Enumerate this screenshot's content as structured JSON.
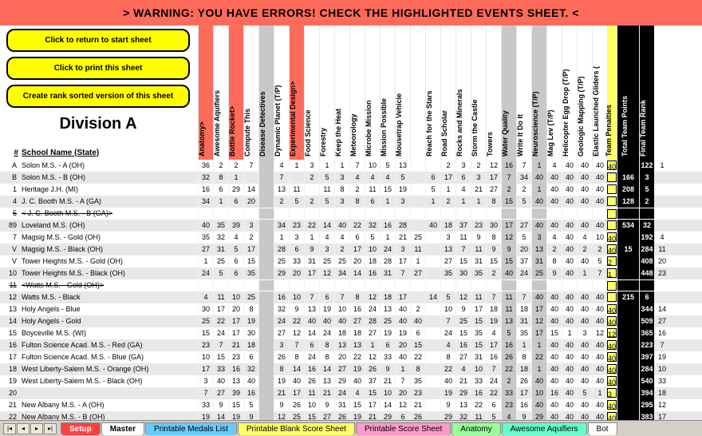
{
  "warning": "> WARNING: YOU HAVE ERRORS! CHECK THE HIGHLIGHTED EVENTS SHEET. <",
  "buttons": {
    "return": "Click to return to start sheet",
    "print": "Click to print this sheet",
    "rank": "Create rank sorted version of this sheet"
  },
  "division": "Division A",
  "hdr_num": "#",
  "hdr_school": "School Name (State)",
  "events": [
    {
      "label": "Anatomy>",
      "class": "red"
    },
    {
      "label": "Awesome Aquifiers",
      "class": ""
    },
    {
      "label": "Bottle Rocket>",
      "class": "red"
    },
    {
      "label": "Compute This",
      "class": ""
    },
    {
      "label": "Disease Detectives",
      "class": "gray"
    },
    {
      "label": "Dynamic Planet (T/P)",
      "class": ""
    },
    {
      "label": "Experimental Design>",
      "class": "red"
    },
    {
      "label": "Food Science",
      "class": ""
    },
    {
      "label": "Forestry",
      "class": ""
    },
    {
      "label": "Keep the Heat",
      "class": ""
    },
    {
      "label": "Meteorology",
      "class": ""
    },
    {
      "label": "Microbe Mission",
      "class": ""
    },
    {
      "label": "Mission Possible",
      "class": ""
    },
    {
      "label": "Mousetrap Vehicle",
      "class": ""
    },
    {
      "label": "",
      "class": ""
    },
    {
      "label": "Reach for the Stars",
      "class": ""
    },
    {
      "label": "Road Scholar",
      "class": ""
    },
    {
      "label": "Rocks and Minerals",
      "class": ""
    },
    {
      "label": "Storm the Castle",
      "class": ""
    },
    {
      "label": "Towers",
      "class": ""
    },
    {
      "label": "Water Quality",
      "class": "gray"
    },
    {
      "label": "Write It Do It",
      "class": ""
    },
    {
      "label": "Neuroscience (T/P)",
      "class": "gray"
    },
    {
      "label": "Mag Lev (T/P)",
      "class": ""
    },
    {
      "label": "Helicopter Egg Drop (T/P)",
      "class": ""
    },
    {
      "label": "Geologic Mapping (T/P)",
      "class": ""
    },
    {
      "label": "Elastic Launched Gliders (",
      "class": ""
    },
    {
      "label": "Team Penalties",
      "class": "yellow"
    },
    {
      "label": "Total Team Points",
      "class": "black"
    },
    {
      "label": "Final Team Rank",
      "class": "black"
    }
  ],
  "rows": [
    {
      "n": "A",
      "s": "Solon M.S. - A (OH)",
      "sh": 0,
      "st": 0,
      "c": [
        "36",
        "2",
        "2",
        "7",
        "",
        "4",
        "1",
        "3",
        "1",
        "1",
        "7",
        "10",
        "5",
        "13",
        "",
        "",
        "2",
        "3",
        "2",
        "12",
        "16",
        "7",
        "1",
        "4",
        "40",
        "40",
        "40",
        "40",
        "",
        "122",
        "1"
      ]
    },
    {
      "n": "B",
      "s": "Solon M.S. - B (OH)",
      "sh": 1,
      "st": 0,
      "c": [
        "32",
        "8",
        "1",
        "",
        "",
        "7",
        "",
        "2",
        "5",
        "3",
        "4",
        "4",
        "4",
        "5",
        "",
        "6",
        "17",
        "6",
        "3",
        "17",
        "7",
        "34",
        "40",
        "40",
        "40",
        "40",
        "40",
        "",
        "166",
        "3"
      ]
    },
    {
      "n": "1",
      "s": "Heritage J.H. (MI)",
      "sh": 0,
      "st": 0,
      "c": [
        "16",
        "6",
        "29",
        "14",
        "",
        "13",
        "11",
        "",
        "11",
        "8",
        "2",
        "11",
        "15",
        "19",
        "",
        "5",
        "1",
        "4",
        "21",
        "27",
        "2",
        "2",
        "1",
        "40",
        "40",
        "40",
        "40",
        "",
        "208",
        "5"
      ]
    },
    {
      "n": "4",
      "s": "J. C. Booth M.S. - A (GA)",
      "sh": 1,
      "st": 0,
      "c": [
        "34",
        "1",
        "6",
        "20",
        "",
        "2",
        "5",
        "2",
        "5",
        "3",
        "8",
        "6",
        "1",
        "3",
        "",
        "1",
        "2",
        "1",
        "1",
        "8",
        "15",
        "5",
        "40",
        "40",
        "40",
        "40",
        "40",
        "",
        "128",
        "2"
      ]
    },
    {
      "n": "5",
      "s": "< J. C. Booth M.S. - B (GA)>",
      "sh": 0,
      "st": 1,
      "c": [
        "",
        "",
        "",
        "",
        "",
        "",
        "",
        "",
        "",
        "",
        "",
        "",
        "",
        "",
        "",
        "",
        "",
        "",
        "",
        "",
        "",
        "",
        "",
        "",
        "",
        "",
        "",
        "",
        "",
        ""
      ]
    },
    {
      "n": "89",
      "s": "Loveland M.S. (OH)",
      "sh": 1,
      "st": 0,
      "c": [
        "40",
        "35",
        "39",
        "3",
        "",
        "34",
        "23",
        "22",
        "14",
        "40",
        "22",
        "32",
        "16",
        "28",
        "",
        "40",
        "18",
        "37",
        "23",
        "30",
        "17",
        "27",
        "40",
        "40",
        "40",
        "40",
        "40",
        "",
        "534",
        "32"
      ]
    },
    {
      "n": "7",
      "s": "Magsig M.S. - Gold (OH)",
      "sh": 0,
      "st": 0,
      "c": [
        "35",
        "32",
        "4",
        "2",
        "",
        "1",
        "3",
        "1",
        "4",
        "4",
        "6",
        "5",
        "1",
        "21",
        "25",
        "",
        "3",
        "11",
        "9",
        "8",
        "12",
        "5",
        "3",
        "4",
        "40",
        "4",
        "10",
        "40",
        "",
        "192",
        "4"
      ]
    },
    {
      "n": "V",
      "s": "Magsig M.S. - Black (OH)",
      "sh": 1,
      "st": 0,
      "c": [
        "27",
        "31",
        "5",
        "17",
        "",
        "28",
        "6",
        "9",
        "3",
        "2",
        "17",
        "10",
        "24",
        "3",
        "11",
        "",
        "13",
        "7",
        "11",
        "9",
        "9",
        "20",
        "13",
        "2",
        "40",
        "2",
        "2",
        "40",
        "15",
        "284",
        "11"
      ]
    },
    {
      "n": "V",
      "s": "Tower Heights M.S. - Gold (OH)",
      "sh": 0,
      "st": 0,
      "c": [
        "1",
        "25",
        "6",
        "15",
        "",
        "25",
        "33",
        "31",
        "25",
        "25",
        "20",
        "18",
        "28",
        "17",
        "1",
        "",
        "27",
        "15",
        "31",
        "15",
        "15",
        "37",
        "31",
        "8",
        "40",
        "40",
        "5",
        "2",
        "",
        "408",
        "20"
      ]
    },
    {
      "n": "10",
      "s": "Tower Heights M.S. - Black (OH)",
      "sh": 1,
      "st": 0,
      "c": [
        "24",
        "5",
        "6",
        "35",
        "",
        "29",
        "20",
        "17",
        "12",
        "34",
        "14",
        "16",
        "31",
        "7",
        "27",
        "",
        "35",
        "30",
        "35",
        "2",
        "40",
        "24",
        "25",
        "9",
        "40",
        "1",
        "7",
        "1",
        "",
        "448",
        "23"
      ]
    },
    {
      "n": "11",
      "s": "<Watts M.S. - Gold (OH)>",
      "sh": 0,
      "st": 1,
      "c": [
        "",
        "",
        "",
        "",
        "",
        "",
        "",
        "",
        "",
        "",
        "",
        "",
        "",
        "",
        "",
        "",
        "",
        "",
        "",
        "",
        "",
        "",
        "",
        "",
        "",
        "",
        "",
        "",
        "",
        ""
      ]
    },
    {
      "n": "12",
      "s": "Watts M.S. - Black",
      "sh": 1,
      "st": 0,
      "c": [
        "4",
        "11",
        "10",
        "25",
        "",
        "16",
        "10",
        "7",
        "6",
        "7",
        "8",
        "12",
        "18",
        "17",
        "",
        "14",
        "5",
        "12",
        "11",
        "7",
        "11",
        "7",
        "40",
        "40",
        "40",
        "40",
        "40",
        "",
        "215",
        "6"
      ]
    },
    {
      "n": "13",
      "s": "Holy Angels - Blue",
      "sh": 0,
      "st": 0,
      "c": [
        "30",
        "17",
        "20",
        "8",
        "",
        "32",
        "9",
        "13",
        "19",
        "10",
        "16",
        "24",
        "13",
        "40",
        "2",
        "",
        "10",
        "9",
        "17",
        "18",
        "11",
        "18",
        "17",
        "40",
        "40",
        "40",
        "40",
        "40",
        "",
        "344",
        "14"
      ]
    },
    {
      "n": "14",
      "s": "Holy Angels - Gold",
      "sh": 1,
      "st": 0,
      "c": [
        "25",
        "22",
        "17",
        "19",
        "",
        "24",
        "22",
        "40",
        "40",
        "40",
        "27",
        "28",
        "25",
        "40",
        "40",
        "",
        "7",
        "25",
        "15",
        "19",
        "13",
        "31",
        "12",
        "40",
        "40",
        "40",
        "40",
        "40",
        "",
        "509",
        "27"
      ]
    },
    {
      "n": "15",
      "s": "Boyceville M.S. (WI)",
      "sh": 0,
      "st": 0,
      "c": [
        "15",
        "24",
        "17",
        "30",
        "",
        "27",
        "12",
        "14",
        "24",
        "18",
        "18",
        "27",
        "19",
        "19",
        "6",
        "",
        "24",
        "15",
        "35",
        "4",
        "5",
        "35",
        "17",
        "15",
        "1",
        "3",
        "12",
        "12",
        "",
        "365",
        "16"
      ]
    },
    {
      "n": "16",
      "s": "Fulton Science Acad. M.S. - Red (GA)",
      "sh": 1,
      "st": 0,
      "c": [
        "23",
        "7",
        "21",
        "18",
        "",
        "3",
        "7",
        "6",
        "8",
        "13",
        "13",
        "1",
        "6",
        "20",
        "15",
        "",
        "4",
        "16",
        "15",
        "17",
        "16",
        "1",
        "1",
        "40",
        "40",
        "40",
        "40",
        "40",
        "",
        "223",
        "7"
      ]
    },
    {
      "n": "17",
      "s": "Fulton Science Acad. M.S. - Blue (GA)",
      "sh": 0,
      "st": 0,
      "c": [
        "10",
        "15",
        "23",
        "6",
        "",
        "26",
        "8",
        "24",
        "8",
        "20",
        "22",
        "12",
        "33",
        "40",
        "22",
        "",
        "8",
        "27",
        "31",
        "16",
        "26",
        "8",
        "22",
        "40",
        "40",
        "40",
        "40",
        "40",
        "",
        "397",
        "19"
      ]
    },
    {
      "n": "18",
      "s": "West Liberty-Salem M.S. - Orange (OH)",
      "sh": 1,
      "st": 0,
      "c": [
        "17",
        "33",
        "16",
        "32",
        "",
        "8",
        "14",
        "16",
        "14",
        "27",
        "19",
        "26",
        "9",
        "1",
        "8",
        "",
        "22",
        "4",
        "10",
        "7",
        "22",
        "18",
        "1",
        "40",
        "40",
        "40",
        "40",
        "40",
        "",
        "284",
        "10"
      ]
    },
    {
      "n": "19",
      "s": "West Liberty-Salem M.S. - Black (OH)",
      "sh": 0,
      "st": 0,
      "c": [
        "3",
        "40",
        "13",
        "40",
        "",
        "19",
        "40",
        "26",
        "13",
        "29",
        "40",
        "37",
        "21",
        "7",
        "35",
        "",
        "40",
        "21",
        "33",
        "24",
        "2",
        "26",
        "40",
        "40",
        "40",
        "40",
        "40",
        "40",
        "",
        "540",
        "33"
      ]
    },
    {
      "n": "20",
      "s": "",
      "sh": 1,
      "st": 0,
      "c": [
        "7",
        "27",
        "39",
        "16",
        "",
        "21",
        "17",
        "11",
        "21",
        "24",
        "4",
        "15",
        "10",
        "20",
        "23",
        "",
        "19",
        "29",
        "16",
        "22",
        "33",
        "17",
        "10",
        "16",
        "40",
        "5",
        "1",
        "3",
        "",
        "394",
        "18"
      ]
    },
    {
      "n": "21",
      "s": "New Albany M.S. - A (OH)",
      "sh": 0,
      "st": 0,
      "c": [
        "33",
        "9",
        "15",
        "5",
        "",
        "9",
        "26",
        "10",
        "9",
        "31",
        "15",
        "17",
        "14",
        "12",
        "21",
        "",
        "9",
        "13",
        "22",
        "6",
        "23",
        "16",
        "40",
        "40",
        "40",
        "40",
        "40",
        "40",
        "",
        "295",
        "12"
      ]
    },
    {
      "n": "22",
      "s": "New Albany M.S. - B (OH)",
      "sh": 1,
      "st": 0,
      "c": [
        "19",
        "14",
        "19",
        "9",
        "",
        "12",
        "25",
        "15",
        "27",
        "26",
        "19",
        "21",
        "29",
        "6",
        "26",
        "",
        "29",
        "32",
        "11",
        "5",
        "4",
        "9",
        "29",
        "40",
        "40",
        "40",
        "40",
        "40",
        "",
        "383",
        "17"
      ]
    }
  ],
  "tabs": {
    "setup": "Setup",
    "master": "Master",
    "medals": "Printable Medals List",
    "blank": "Printable Blank Score Sheet",
    "score": "Printable Score Sheet",
    "anatomy": "Anatomy",
    "aquifiers": "Awesome Aquifiers",
    "bot": "Bot"
  },
  "colors": {
    "warning_bg": "#ff6b5b",
    "button_bg": "#ffff00",
    "gray_highlight": "#c8c8c8",
    "yellow_highlight": "#ffff66",
    "green_cell": "#7fbf7f",
    "black_bg": "#000000",
    "shade_row": "#e8e8e8"
  }
}
